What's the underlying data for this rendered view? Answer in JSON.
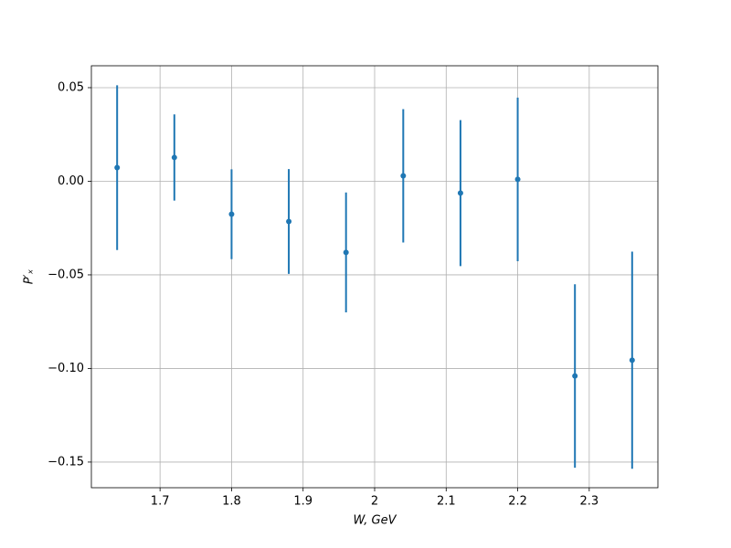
{
  "chart_data": {
    "type": "errorbar",
    "x": [
      1.64,
      1.72,
      1.8,
      1.88,
      1.96,
      2.04,
      2.12,
      2.2,
      2.28,
      2.36
    ],
    "values": [
      0.0073,
      0.0127,
      -0.0176,
      -0.0215,
      -0.038,
      0.0029,
      -0.0063,
      0.001,
      -0.104,
      -0.0956
    ],
    "errors": [
      0.044,
      0.023,
      0.024,
      0.028,
      0.032,
      0.0356,
      0.039,
      0.0437,
      0.049,
      0.058
    ],
    "color": "#1f77b4",
    "xlabel": "W, GeV",
    "ylabel": "P′ₓ",
    "xlim": [
      1.604,
      2.396
    ],
    "ylim": [
      -0.1637,
      0.0617
    ],
    "xticks": [
      1.7,
      1.8,
      1.9,
      2.0,
      2.1,
      2.2,
      2.3
    ],
    "yticks": [
      {
        "value": 0.05,
        "label": "0.05"
      },
      {
        "value": 0,
        "label": "0.00"
      },
      {
        "value": -0.05,
        "label": "−0.05"
      },
      {
        "value": -0.1,
        "label": "−0.10"
      },
      {
        "value": -0.15,
        "label": "−0.15"
      }
    ],
    "grid": true
  }
}
